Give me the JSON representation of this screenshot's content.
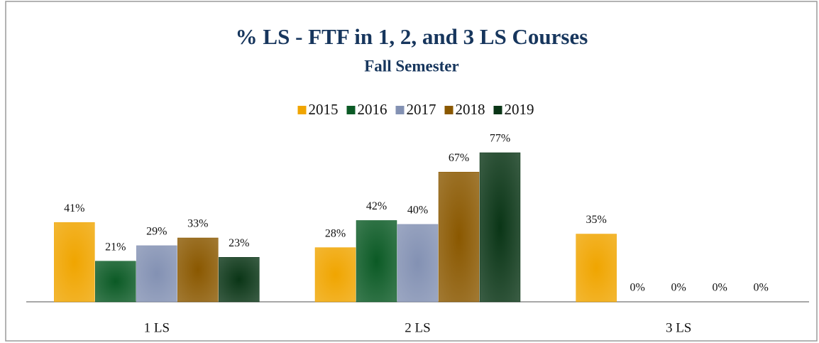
{
  "chart_data": {
    "type": "bar",
    "title": "% LS - FTF in 1, 2, and 3 LS Courses",
    "subtitle": "Fall Semester",
    "categories": [
      "1 LS",
      "2 LS",
      "3 LS"
    ],
    "series": [
      {
        "name": "2015",
        "color": "#f0a500",
        "values": [
          41,
          28,
          35
        ],
        "value_labels": [
          "41%",
          "28%",
          "35%"
        ]
      },
      {
        "name": "2016",
        "color": "#0b5a25",
        "values": [
          21,
          42,
          0
        ],
        "value_labels": [
          "21%",
          "42%",
          "0%"
        ]
      },
      {
        "name": "2017",
        "color": "#8391b3",
        "values": [
          29,
          40,
          0
        ],
        "value_labels": [
          "29%",
          "40%",
          "0%"
        ]
      },
      {
        "name": "2018",
        "color": "#8a5800",
        "values": [
          33,
          67,
          0
        ],
        "value_labels": [
          "33%",
          "67%",
          "0%"
        ]
      },
      {
        "name": "2019",
        "color": "#0a3516",
        "values": [
          23,
          77,
          0
        ],
        "value_labels": [
          "23%",
          "77%",
          "0%"
        ]
      }
    ],
    "legend": "top"
  }
}
